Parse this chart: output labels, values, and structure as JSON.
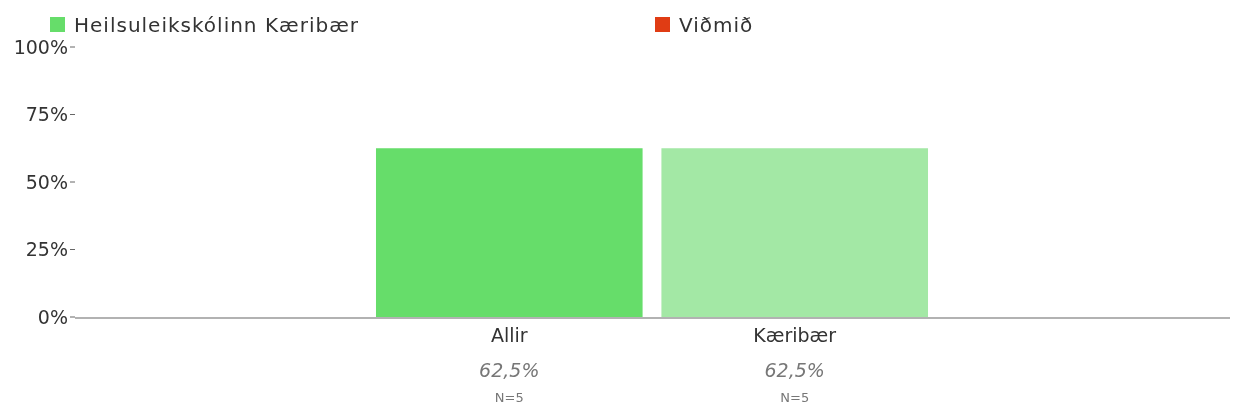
{
  "chart_data": {
    "type": "bar",
    "categories": [
      "Allir",
      "Kæribær"
    ],
    "series": [
      {
        "name": "Heilsuleikskólinn Kæribær",
        "color": "#66dd6a",
        "colors": [
          "#66dd6a",
          "#a3e8a5"
        ],
        "values": [
          62.5,
          62.5
        ],
        "value_labels": [
          "62,5%",
          "62,5%"
        ]
      },
      {
        "name": "Viðmið",
        "color": "#e03c14",
        "values": [
          null,
          null
        ]
      }
    ],
    "ylim": [
      0,
      100
    ],
    "yticks": [
      {
        "value": 0,
        "label": "0%"
      },
      {
        "value": 25,
        "label": "25%"
      },
      {
        "value": 50,
        "label": "50%"
      },
      {
        "value": 75,
        "label": "75%"
      },
      {
        "value": 100,
        "label": "100%"
      }
    ],
    "annotations": [
      "N=5",
      "N=5"
    ],
    "grid": false,
    "legend": "top"
  }
}
